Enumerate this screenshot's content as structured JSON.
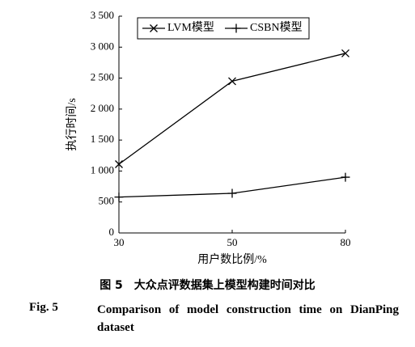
{
  "chart_data": {
    "type": "line",
    "categories": [
      "30",
      "50",
      "80"
    ],
    "series": [
      {
        "name": "LVM模型",
        "color": "#000000",
        "marker": "x",
        "values": [
          1110,
          2450,
          2900
        ]
      },
      {
        "name": "CSBN模型",
        "color": "#000000",
        "marker": "+",
        "values": [
          580,
          640,
          900
        ]
      }
    ],
    "ylim": [
      0,
      3500
    ],
    "yticks": [
      0,
      500,
      {
        "value": 1000,
        "label": "1 000"
      },
      {
        "value": 1500,
        "label": "1 500"
      },
      {
        "value": 2000,
        "label": "2 000"
      },
      {
        "value": 2500,
        "label": "2 500"
      },
      {
        "value": 3000,
        "label": "3 000"
      },
      {
        "value": 3500,
        "label": "3 500"
      }
    ],
    "xlabel": "用户数比例/%",
    "ylabel": "执行时间/s",
    "legend": "top",
    "caption_cn": "图 5　大众点评数据集上模型构建时间对比",
    "caption_fig": "Fig. 5",
    "caption_en": "Comparison of model construction time on DianPing dataset"
  }
}
